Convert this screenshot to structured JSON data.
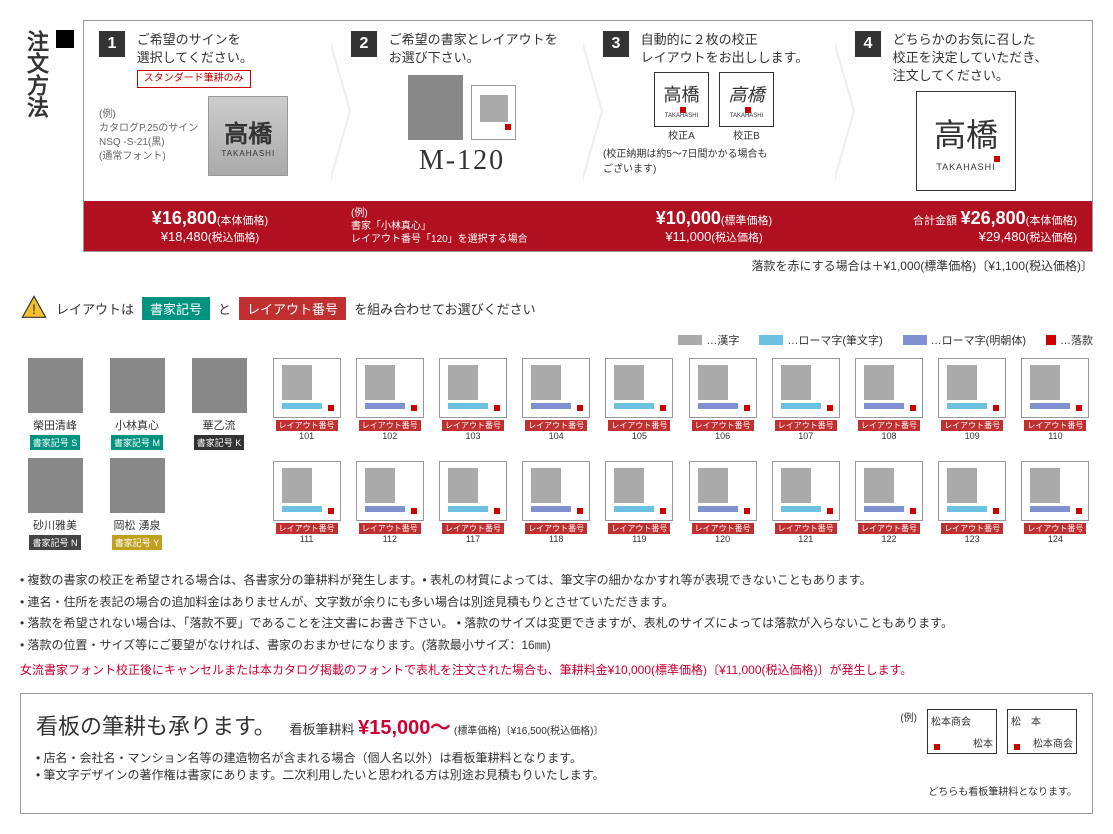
{
  "title": "注文方法",
  "steps": [
    {
      "num": "1",
      "text": "ご希望のサインを\n選択してください。",
      "badge": "スタンダード筆耕のみ",
      "example_label": "(例)\nカタログP.25のサイン\nNSQ -S-21(黒)\n(通常フォント)",
      "sample_kanji": "高橋",
      "sample_roma": "TAKAHASHI"
    },
    {
      "num": "2",
      "text": "ご希望の書家とレイアウトを\nお選び下さい。",
      "code": "M-120",
      "note": "(例)\n書家「小林真心」\nレイアウト番号「120」を選択する場合"
    },
    {
      "num": "3",
      "text": "自動的に２枚の校正\nレイアウトをお出しします。",
      "proofA": "校正A",
      "proofB": "校正B",
      "note": "(校正納期は約5～7日間かかる場合も\nございます)"
    },
    {
      "num": "4",
      "text": "どちらかのお気に召した\n校正を決定していただき、\n注文してください。"
    }
  ],
  "prices": {
    "p1_main": "¥16,800",
    "p1_sub": "(本体価格)",
    "p1_tax": "¥18,480",
    "p1_tax_sub": "(税込価格)",
    "p3_main": "¥10,000",
    "p3_sub": "(標準価格)",
    "p3_tax": "¥11,000",
    "p3_tax_sub": "(税込価格)",
    "total_label": "合計金額",
    "p4_main": "¥26,800",
    "p4_sub": "(本体価格)",
    "p4_tax": "¥29,480",
    "p4_tax_sub": "(税込価格)"
  },
  "rakkan_note": "落款を赤にする場合は＋¥1,000(標準価格)〔¥1,100(税込価格)〕",
  "combo": {
    "prefix": "レイアウトは",
    "green": "書家記号",
    "and": "と",
    "red": "レイアウト番号",
    "suffix": "を組み合わせてお選びください"
  },
  "legend": [
    {
      "color": "#aaaaaa",
      "label": "…漢字"
    },
    {
      "color": "#6cc0e0",
      "label": "…ローマ字(筆文字)"
    },
    {
      "color": "#8090d0",
      "label": "…ローマ字(明朝体)"
    },
    {
      "color": "#cc0000",
      "label": "…落款",
      "small": true
    }
  ],
  "artists": [
    {
      "name": "榮田清峰",
      "code": "書家記号 S",
      "cls": "code-s"
    },
    {
      "name": "小林真心",
      "code": "書家記号 M",
      "cls": "code-m"
    },
    {
      "name": "華乙流",
      "code": "書家記号 K",
      "cls": "code-k"
    },
    {
      "name": "砂川雅美",
      "code": "書家記号 N",
      "cls": "code-n"
    },
    {
      "name": "岡松 湧泉",
      "code": "書家記号 Y",
      "cls": "code-y"
    }
  ],
  "layout_label_prefix": "レイアウト番号",
  "layouts_row1": [
    "101",
    "102",
    "103",
    "104",
    "105",
    "106",
    "107",
    "108",
    "109",
    "110"
  ],
  "layouts_row2": [
    "111",
    "112",
    "117",
    "118",
    "119",
    "120",
    "121",
    "122",
    "123",
    "124"
  ],
  "notes": [
    "複数の書家の校正を希望される場合は、各書家分の筆耕料が発生します。• 表札の材質によっては、筆文字の細かなかすれ等が表現できないこともあります。",
    "連名・住所を表記の場合の追加料金はありませんが、文字数が余りにも多い場合は別途見積もりとさせていただきます。",
    "落款を希望されない場合は、「落款不要」であることを注文書にお書き下さい。 • 落款のサイズは変更できますが、表札のサイズによっては落款が入らないこともあります。",
    "落款の位置・サイズ等にご要望がなければ、書家のおまかせになります。(落款最小サイズ：16㎜)"
  ],
  "red_note": "女流書家フォント校正後にキャンセルまたは本カタログ掲載のフォントで表札を注文された場合も、筆耕料金¥10,000(標準価格)〔¥11,000(税込価格)〕が発生します。",
  "kanban": {
    "title": "看板の筆耕も承ります。",
    "label": "看板筆耕料",
    "price": "¥15,000～",
    "price_sub": "(標準価格)〔¥16,500(税込価格)〕",
    "ex_label": "(例)",
    "note1": "店名・会社名・マンション名等の建造物名が含まれる場合（個人名以外）は看板筆耕料となります。",
    "note2": "筆文字デザインの著作権は書家にあります。二次利用したいと思われる方は別途お見積もりいたします。",
    "sample1_top": "松本商会",
    "sample1_btm": "松本",
    "sample2_top": "松　本",
    "sample2_btm": "松本商会",
    "footer": "どちらも看板筆耕料となります。"
  }
}
